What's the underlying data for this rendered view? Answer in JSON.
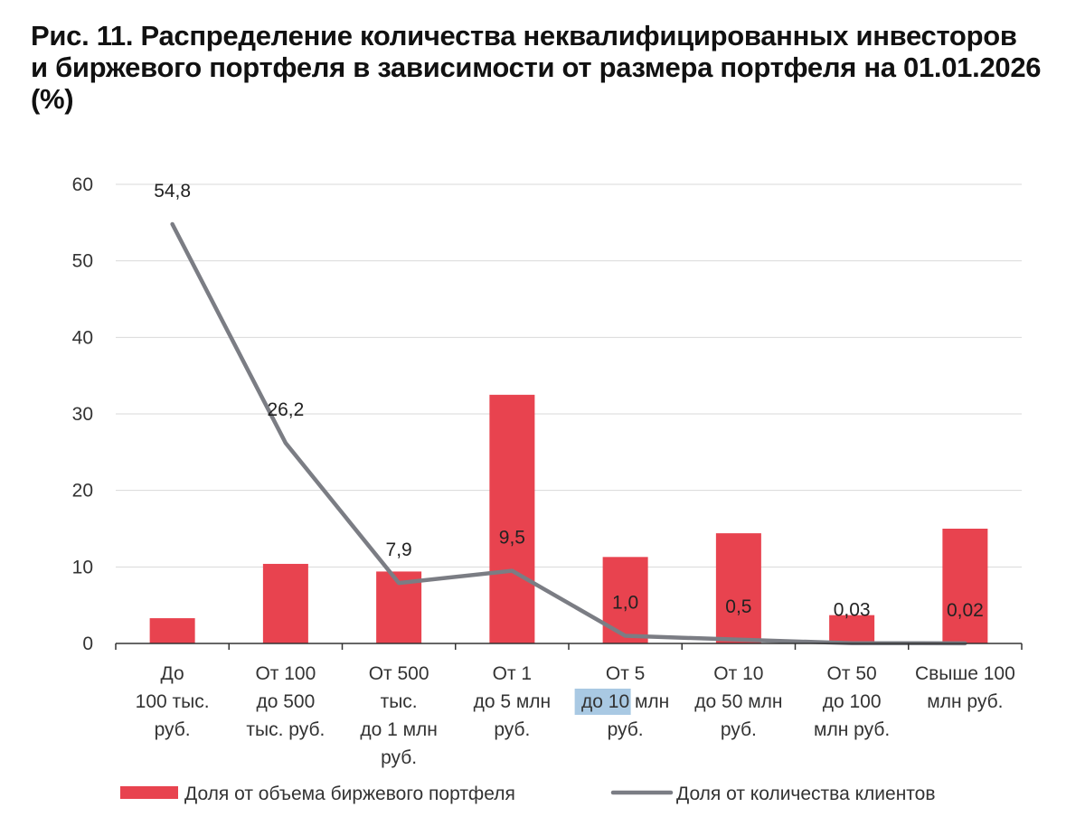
{
  "title": {
    "line1": "Рис. 11. Распределение количества неквалифицированных инвесторов",
    "line2": "и биржевого портфеля в зависимости от размера портфеля на 01.01.2026",
    "line3": "(%)"
  },
  "chart_data": {
    "type": "bar+line",
    "categories": [
      [
        "До",
        "100 тыс.",
        "руб."
      ],
      [
        "От 100",
        "до 500",
        "тыс. руб."
      ],
      [
        "От 500",
        "тыс.",
        "до 1 млн",
        "руб."
      ],
      [
        "От 1",
        "до 5 млн",
        "руб."
      ],
      [
        "От 5",
        "до 10 млн",
        "руб."
      ],
      [
        "От 10",
        "до 50 млн",
        "руб."
      ],
      [
        "От 50",
        "до 100",
        "млн руб."
      ],
      [
        "Свыше 100",
        "млн руб."
      ]
    ],
    "series": [
      {
        "name": "Доля от объема биржевого портфеля",
        "type": "bar",
        "color": "#e8434f",
        "values": [
          3.3,
          10.4,
          9.4,
          32.5,
          11.3,
          14.4,
          3.7,
          15.0
        ]
      },
      {
        "name": "Доля от количества клиентов",
        "type": "line",
        "color": "#7b7d84",
        "values": [
          54.8,
          26.2,
          7.9,
          9.5,
          1.0,
          0.5,
          0.03,
          0.02
        ],
        "labels": [
          "54,8",
          "26,2",
          "7,9",
          "9,5",
          "1,0",
          "0,5",
          "0,03",
          "0,02"
        ]
      }
    ],
    "yticks": [
      0,
      10,
      20,
      30,
      40,
      50,
      60
    ],
    "ylim": [
      0,
      60
    ],
    "grid": true,
    "legend_position": "bottom"
  }
}
